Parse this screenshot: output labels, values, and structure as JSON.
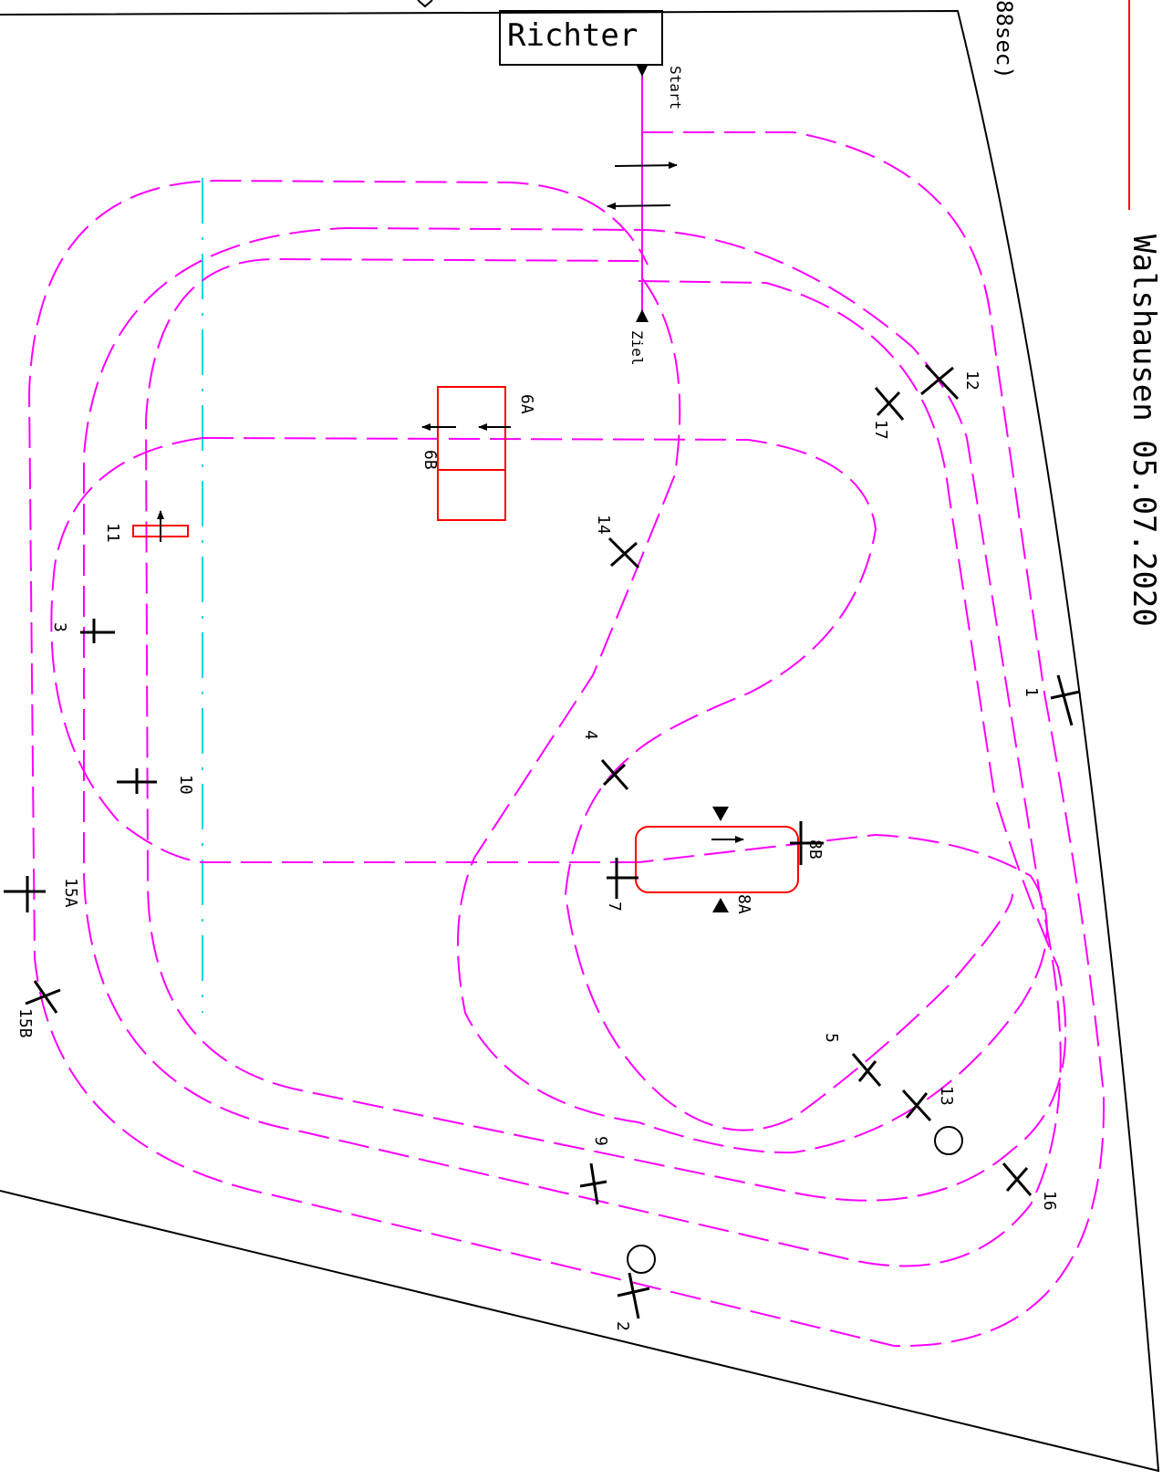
{
  "diagram": {
    "title": "Walshausen 05.07.2020",
    "time_fragment": "88sec)",
    "judge_label": "Richter",
    "start_label": "Start",
    "finish_label": "Ziel",
    "obstacles": [
      "1",
      "2",
      "3",
      "4",
      "5",
      "6A",
      "6B",
      "7",
      "8A",
      "8B",
      "9",
      "10",
      "11",
      "12",
      "13",
      "14",
      "15A",
      "15B",
      "16",
      "17"
    ],
    "colors": {
      "route": "#ff00ff",
      "obstacle": "#ff0000",
      "axis": "#00d8e8",
      "ink": "#000000"
    }
  }
}
